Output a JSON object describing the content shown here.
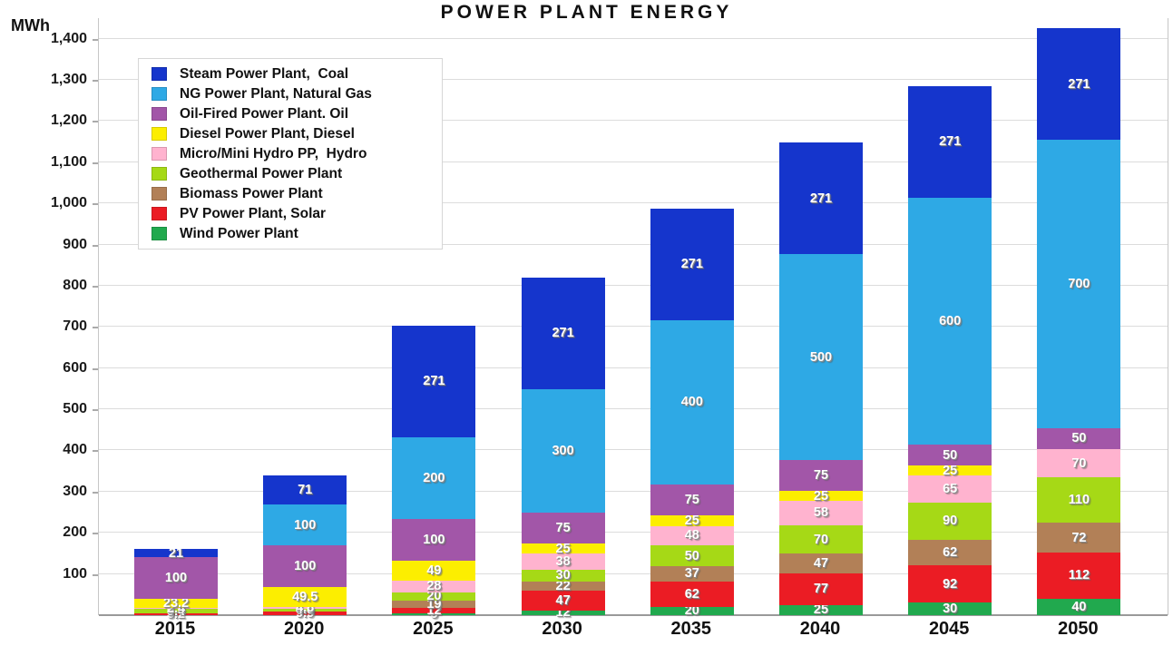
{
  "title": "POWER PLANT ENERGY",
  "y_axis_unit": "MWh",
  "colors": {
    "background": "#ffffff",
    "gridline": "#dcdcdc",
    "axis": "#9a9a9a",
    "value_label": "#ffffff",
    "text": "#111111"
  },
  "y_ticks": [
    "100",
    "200",
    "300",
    "400",
    "500",
    "600",
    "700",
    "800",
    "900",
    "1,000",
    "1,100",
    "1,200",
    "1,300",
    "1,400"
  ],
  "chart_data": {
    "type": "bar",
    "stacked": true,
    "title": "POWER PLANT ENERGY",
    "ylabel": "MWh",
    "xlabel": "",
    "ylim": [
      0,
      1450
    ],
    "ytick_step": 100,
    "grid": true,
    "legend_position": "upper-left-inside",
    "categories": [
      "2015",
      "2020",
      "2025",
      "2030",
      "2035",
      "2040",
      "2045",
      "2050"
    ],
    "series": [
      {
        "name": "Steam Power Plant,  Coal",
        "color": "#1535cc",
        "values": [
          21,
          71,
          271,
          271,
          271,
          271,
          271,
          271
        ]
      },
      {
        "name": "NG Power Plant, Natural Gas",
        "color": "#2ea9e5",
        "values": [
          0,
          100,
          200,
          300,
          400,
          500,
          600,
          700
        ]
      },
      {
        "name": "Oil-Fired Power Plant. Oil",
        "color": "#a256a8",
        "values": [
          100,
          100,
          100,
          75,
          75,
          75,
          50,
          50
        ]
      },
      {
        "name": "Diesel Power Plant, Diesel",
        "color": "#fcee00",
        "values": [
          23.2,
          49.5,
          49,
          25,
          25,
          25,
          25,
          0
        ]
      },
      {
        "name": "Micro/Mini Hydro PP,  Hydro",
        "color": "#ffb3cf",
        "values": [
          2.4,
          4.8,
          28,
          38,
          48,
          58,
          65,
          70
        ]
      },
      {
        "name": "Geothermal Power Plant",
        "color": "#a6d916",
        "values": [
          9.4,
          4.8,
          20,
          30,
          50,
          70,
          90,
          110
        ]
      },
      {
        "name": "Biomass Power Plant",
        "color": "#b28057",
        "values": [
          0,
          0,
          19,
          22,
          37,
          47,
          62,
          72
        ]
      },
      {
        "name": "PV Power Plant, Solar",
        "color": "#eb1c24",
        "values": [
          5.2,
          9.9,
          12,
          47,
          62,
          77,
          92,
          112
        ]
      },
      {
        "name": "Wind Power Plant",
        "color": "#21a94e",
        "values": [
          0,
          0,
          5,
          12,
          20,
          25,
          30,
          40
        ]
      }
    ]
  }
}
